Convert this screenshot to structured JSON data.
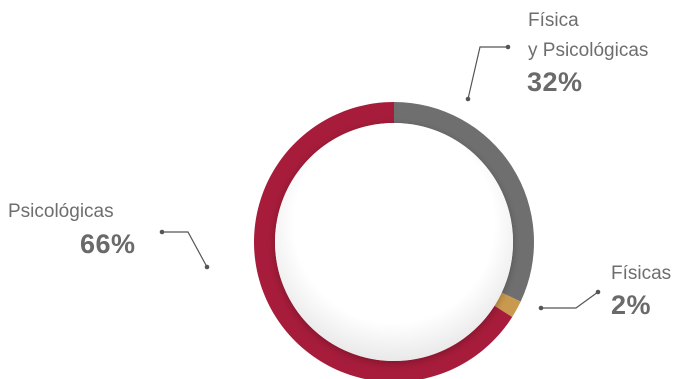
{
  "chart_data": {
    "type": "pie",
    "title": "",
    "labels": [
      {
        "name_lines": [
          "Física",
          "y Psicológicas"
        ],
        "percent": "32%"
      },
      {
        "name_lines": [
          "Físicas"
        ],
        "percent": "2%"
      },
      {
        "name_lines": [
          "Psicológicas"
        ],
        "percent": "66%"
      }
    ],
    "values": [
      32,
      2,
      66
    ],
    "colors": [
      "#6f6f6f",
      "#c9994e",
      "#a61c3a"
    ],
    "style": "donut"
  }
}
